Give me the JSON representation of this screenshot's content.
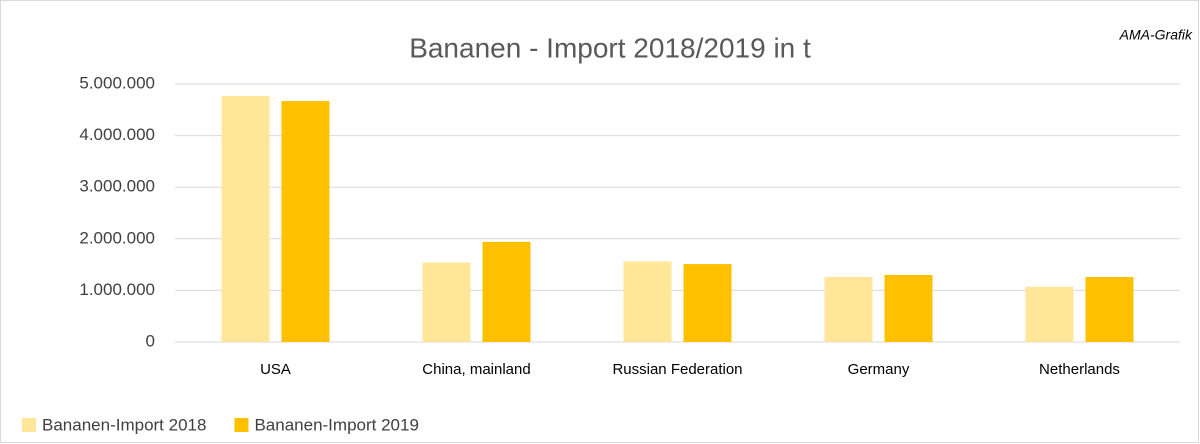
{
  "chart_data": {
    "type": "bar",
    "title": "Bananen - Import 2018/2019 in t",
    "annotation": "AMA-Grafik",
    "categories": [
      "USA",
      "China, mainland",
      "Russian Federation",
      "Germany",
      "Netherlands"
    ],
    "series": [
      {
        "name": "Bananen-Import 2018",
        "color": "#ffe699",
        "values": [
          4770000,
          1540000,
          1560000,
          1260000,
          1070000
        ]
      },
      {
        "name": "Bananen-Import 2019",
        "color": "#ffc000",
        "values": [
          4670000,
          1940000,
          1510000,
          1300000,
          1260000
        ]
      }
    ],
    "ylim": [
      0,
      5000000
    ],
    "yticks": [
      0,
      {
        "value": 1000000,
        "label": "1.000.000"
      },
      {
        "value": 2000000,
        "label": "2.000.000"
      },
      {
        "value": 3000000,
        "label": "3.000.000"
      },
      {
        "value": 4000000,
        "label": "4.000.000"
      },
      {
        "value": 5000000,
        "label": "5.000.000"
      }
    ],
    "grid": true,
    "legend": "bottom-left"
  }
}
